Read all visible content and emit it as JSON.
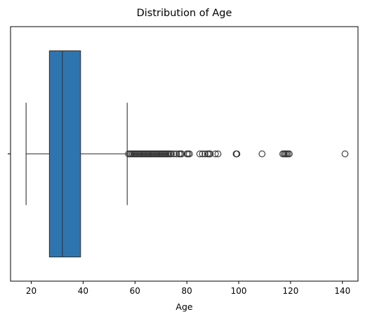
{
  "chart_data": {
    "type": "box",
    "title": "Distribution of Age",
    "xlabel": "Age",
    "ylabel": "",
    "orientation": "horizontal",
    "xlim": [
      12,
      146
    ],
    "x_ticks": [
      20,
      40,
      60,
      80,
      100,
      120,
      140
    ],
    "y_ticks": [
      ""
    ],
    "grid": false,
    "box_color": "#2e75b0",
    "line_color": "#333333",
    "stats": {
      "whisker_low": 18,
      "q1": 27,
      "median": 32,
      "q3": 39,
      "whisker_high": 57
    },
    "outliers": [
      57.5,
      58,
      58.5,
      59,
      59.5,
      60,
      60.5,
      61,
      61.5,
      62,
      62.5,
      63,
      63.5,
      64,
      64.5,
      65,
      65.5,
      66,
      66.5,
      67,
      67.5,
      68,
      68.5,
      69,
      69.5,
      70,
      70.5,
      71,
      71.5,
      72,
      72.5,
      73,
      73.5,
      74,
      75,
      76,
      77,
      77.5,
      78,
      80,
      80.5,
      81,
      85,
      86,
      87,
      88,
      88.5,
      89,
      91,
      92,
      99,
      99.3,
      109,
      117,
      117.5,
      118,
      118.5,
      119,
      119.5,
      141
    ]
  }
}
